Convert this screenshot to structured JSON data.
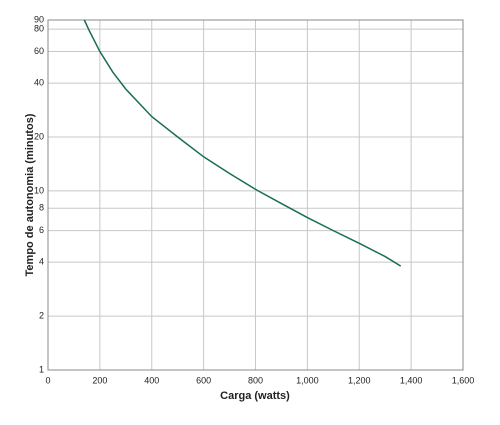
{
  "chart_data": {
    "type": "line",
    "x_label": "Carga (watts)",
    "y_label": "Tempo de autonomia (minutos)",
    "x": [
      140,
      160,
      200,
      250,
      300,
      400,
      500,
      600,
      700,
      800,
      900,
      1000,
      1100,
      1200,
      1300,
      1360
    ],
    "series": [
      {
        "color": "#1a6e4e",
        "values": [
          90,
          78,
          60,
          46,
          37,
          26,
          20,
          15.5,
          12.5,
          10.2,
          8.5,
          7.1,
          6,
          5.1,
          4.3,
          3.8
        ]
      }
    ],
    "xlim": [
      0,
      1600
    ],
    "xticks": [
      0,
      200,
      400,
      600,
      800,
      {
        "value": 1000,
        "label": "1,000"
      },
      {
        "value": 1200,
        "label": "1,200"
      },
      {
        "value": 1400,
        "label": "1,400"
      },
      {
        "value": 1600,
        "label": "1,600"
      }
    ],
    "ylim": [
      1,
      90
    ],
    "yticks": [
      1,
      2,
      4,
      6,
      8,
      10,
      20,
      40,
      60,
      80,
      90
    ],
    "y_scale": "log",
    "grid": true
  }
}
